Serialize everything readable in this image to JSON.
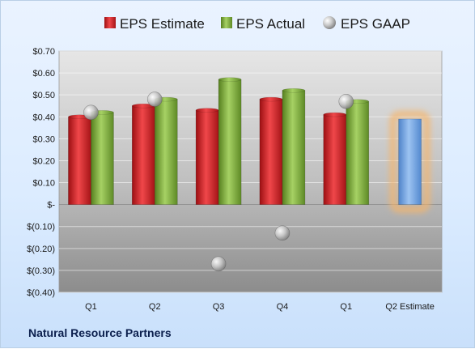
{
  "company": "Natural Resource Partners",
  "chart_data": {
    "type": "bar",
    "categories": [
      "Q1",
      "Q2",
      "Q3",
      "Q4",
      "Q1",
      "Q2 Estimate"
    ],
    "y_tick_labels": [
      "$(0.40)",
      "$(0.30)",
      "$(0.20)",
      "$(0.10)",
      "$-",
      "$0.10",
      "$0.20",
      "$0.30",
      "$0.40",
      "$0.50",
      "$0.60",
      "$0.70"
    ],
    "ylim": [
      -0.4,
      0.7
    ],
    "legend_position": "top",
    "grid": true,
    "series": [
      {
        "name": "EPS Estimate",
        "type": "bar",
        "color": "#c8191c",
        "values": [
          0.4,
          0.45,
          0.43,
          0.48,
          0.41,
          null
        ]
      },
      {
        "name": "EPS Actual",
        "type": "bar",
        "color": "#77a33a",
        "values": [
          0.42,
          0.48,
          0.57,
          0.52,
          0.47,
          null
        ]
      },
      {
        "name": "EPS GAAP",
        "type": "scatter",
        "color": "#a8a8a8",
        "values": [
          0.42,
          0.48,
          -0.27,
          -0.13,
          0.47,
          null
        ]
      }
    ],
    "highlight": {
      "category": "Q2 Estimate",
      "value": 0.39,
      "color": "#6e9fdc",
      "glow": "#f6b56a"
    }
  }
}
